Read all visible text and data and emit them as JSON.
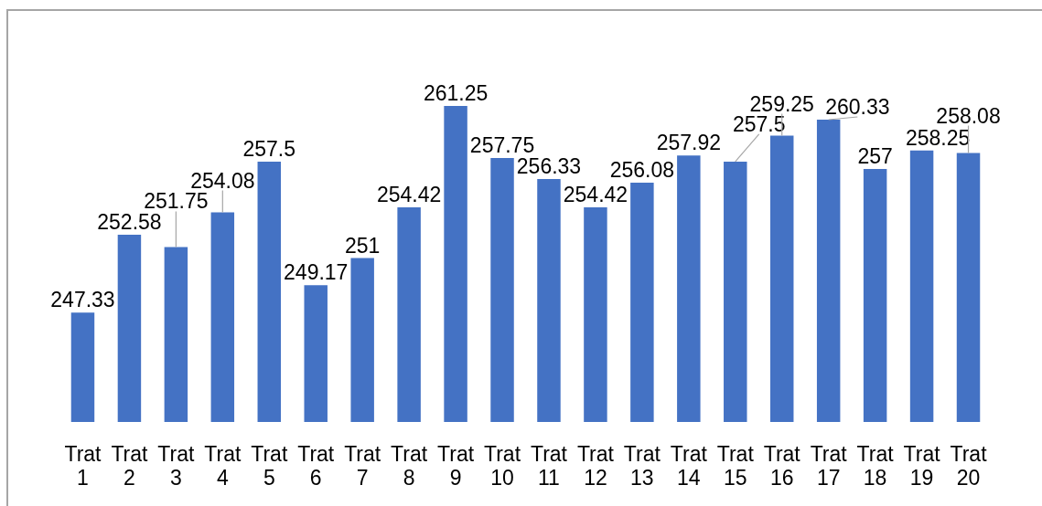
{
  "chart_data": {
    "type": "bar",
    "categories": [
      "Trat 1",
      "Trat 2",
      "Trat 3",
      "Trat 4",
      "Trat 5",
      "Trat 6",
      "Trat 7",
      "Trat 8",
      "Trat 9",
      "Trat 10",
      "Trat 11",
      "Trat 12",
      "Trat 13",
      "Trat 14",
      "Trat 15",
      "Trat 16",
      "Trat 17",
      "Trat 18",
      "Trat 19",
      "Trat 20"
    ],
    "values": [
      247.33,
      252.58,
      251.75,
      254.08,
      257.5,
      249.17,
      251,
      254.42,
      261.25,
      257.75,
      256.33,
      254.42,
      256.08,
      257.92,
      257.5,
      259.25,
      260.33,
      257,
      258.25,
      258.08
    ],
    "color": "#4472c4",
    "tick_labels": "x",
    "data_labels": true
  }
}
